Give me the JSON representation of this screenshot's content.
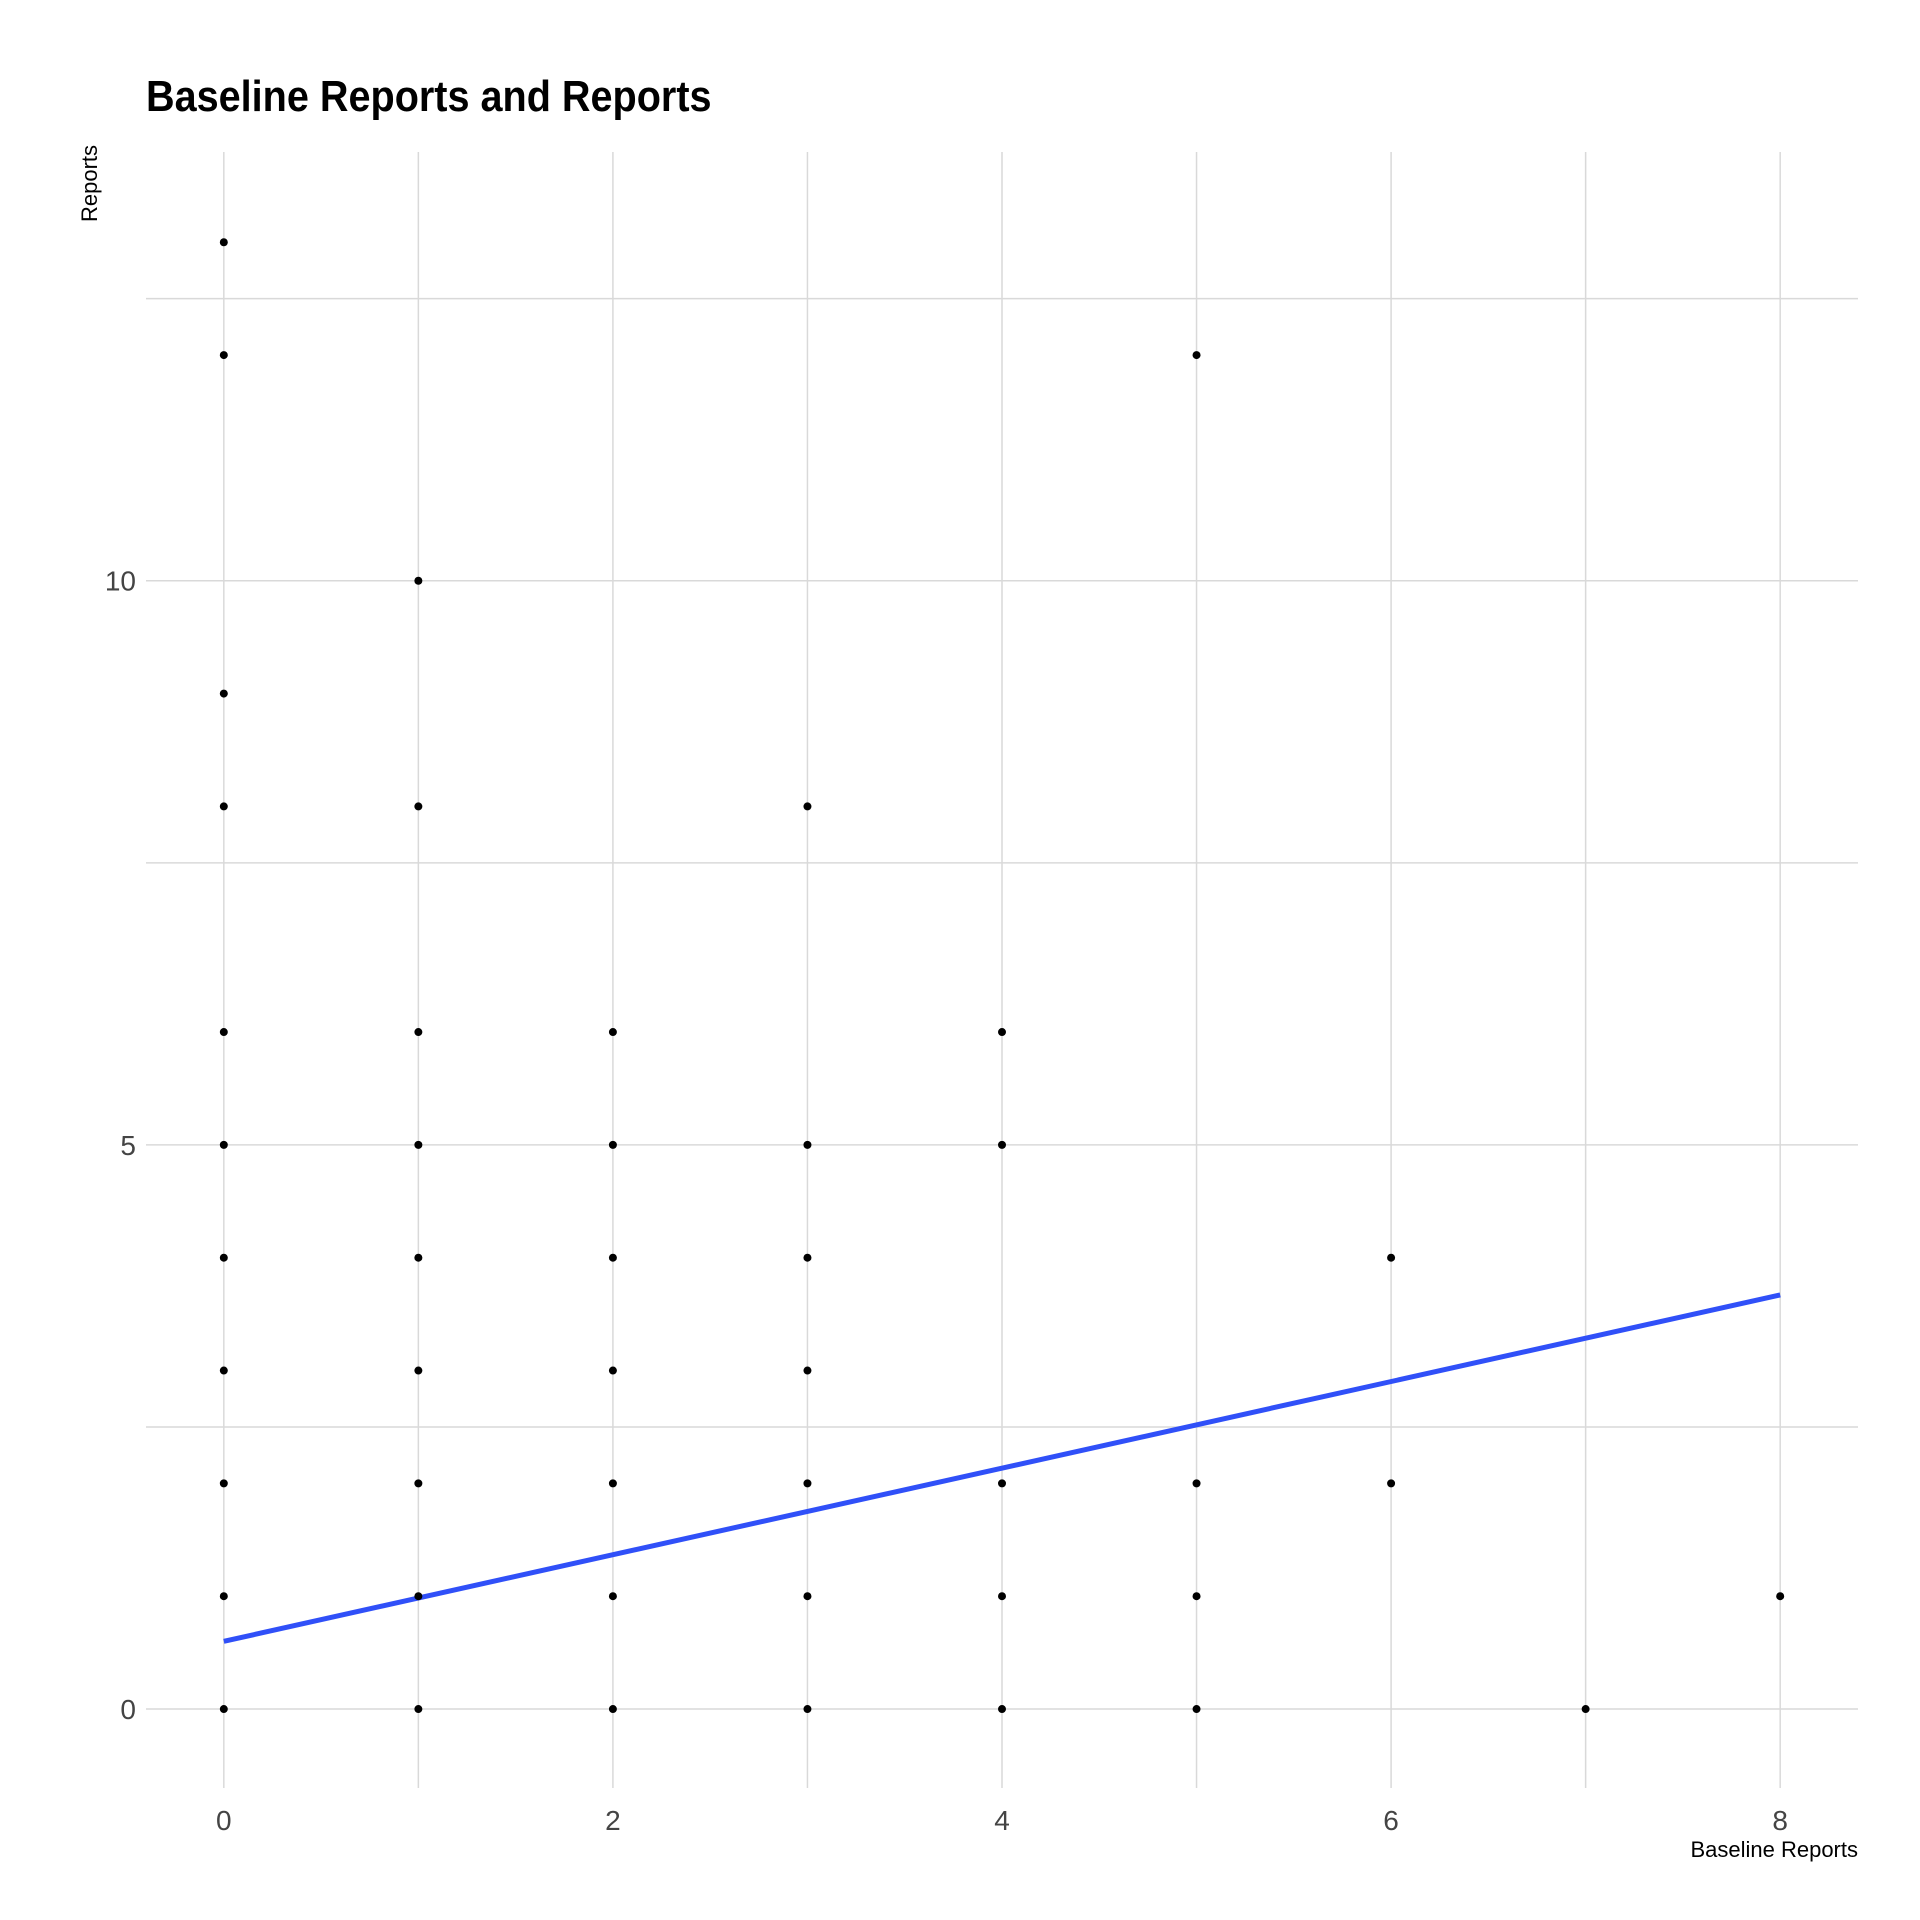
{
  "chart_data": {
    "type": "scatter",
    "title": "Baseline Reports and Reports",
    "xlabel": "Baseline Reports",
    "ylabel": "Reports",
    "xlim": [
      -0.4,
      8.4
    ],
    "ylim": [
      -0.7,
      13.8
    ],
    "x_ticks": [
      0,
      2,
      4,
      6,
      8
    ],
    "x_tick_labels": [
      "0",
      "2",
      "4",
      "6",
      "8"
    ],
    "y_ticks": [
      0,
      5,
      10
    ],
    "y_tick_labels": [
      "0",
      "5",
      "10"
    ],
    "grid": true,
    "legend": "none",
    "points": [
      {
        "x": 0,
        "y": 13
      },
      {
        "x": 0,
        "y": 12
      },
      {
        "x": 0,
        "y": 9
      },
      {
        "x": 0,
        "y": 8
      },
      {
        "x": 0,
        "y": 6
      },
      {
        "x": 0,
        "y": 5
      },
      {
        "x": 0,
        "y": 4
      },
      {
        "x": 0,
        "y": 3
      },
      {
        "x": 0,
        "y": 2
      },
      {
        "x": 0,
        "y": 1
      },
      {
        "x": 0,
        "y": 0
      },
      {
        "x": 1,
        "y": 10
      },
      {
        "x": 1,
        "y": 8
      },
      {
        "x": 1,
        "y": 6
      },
      {
        "x": 1,
        "y": 5
      },
      {
        "x": 1,
        "y": 4
      },
      {
        "x": 1,
        "y": 3
      },
      {
        "x": 1,
        "y": 2
      },
      {
        "x": 1,
        "y": 1
      },
      {
        "x": 1,
        "y": 0
      },
      {
        "x": 2,
        "y": 6
      },
      {
        "x": 2,
        "y": 5
      },
      {
        "x": 2,
        "y": 4
      },
      {
        "x": 2,
        "y": 3
      },
      {
        "x": 2,
        "y": 2
      },
      {
        "x": 2,
        "y": 1
      },
      {
        "x": 2,
        "y": 0
      },
      {
        "x": 3,
        "y": 8
      },
      {
        "x": 3,
        "y": 5
      },
      {
        "x": 3,
        "y": 4
      },
      {
        "x": 3,
        "y": 3
      },
      {
        "x": 3,
        "y": 2
      },
      {
        "x": 3,
        "y": 1
      },
      {
        "x": 3,
        "y": 0
      },
      {
        "x": 4,
        "y": 6
      },
      {
        "x": 4,
        "y": 5
      },
      {
        "x": 4,
        "y": 2
      },
      {
        "x": 4,
        "y": 1
      },
      {
        "x": 4,
        "y": 0
      },
      {
        "x": 5,
        "y": 12
      },
      {
        "x": 5,
        "y": 2
      },
      {
        "x": 5,
        "y": 1
      },
      {
        "x": 5,
        "y": 0
      },
      {
        "x": 6,
        "y": 4
      },
      {
        "x": 6,
        "y": 2
      },
      {
        "x": 7,
        "y": 0
      },
      {
        "x": 8,
        "y": 1
      }
    ],
    "trend_line": {
      "x": [
        0,
        8
      ],
      "y": [
        0.6,
        3.67
      ]
    },
    "colors": {
      "points": "#000000",
      "trend_line": "#3050F8",
      "grid": "#D9D9D9"
    }
  }
}
